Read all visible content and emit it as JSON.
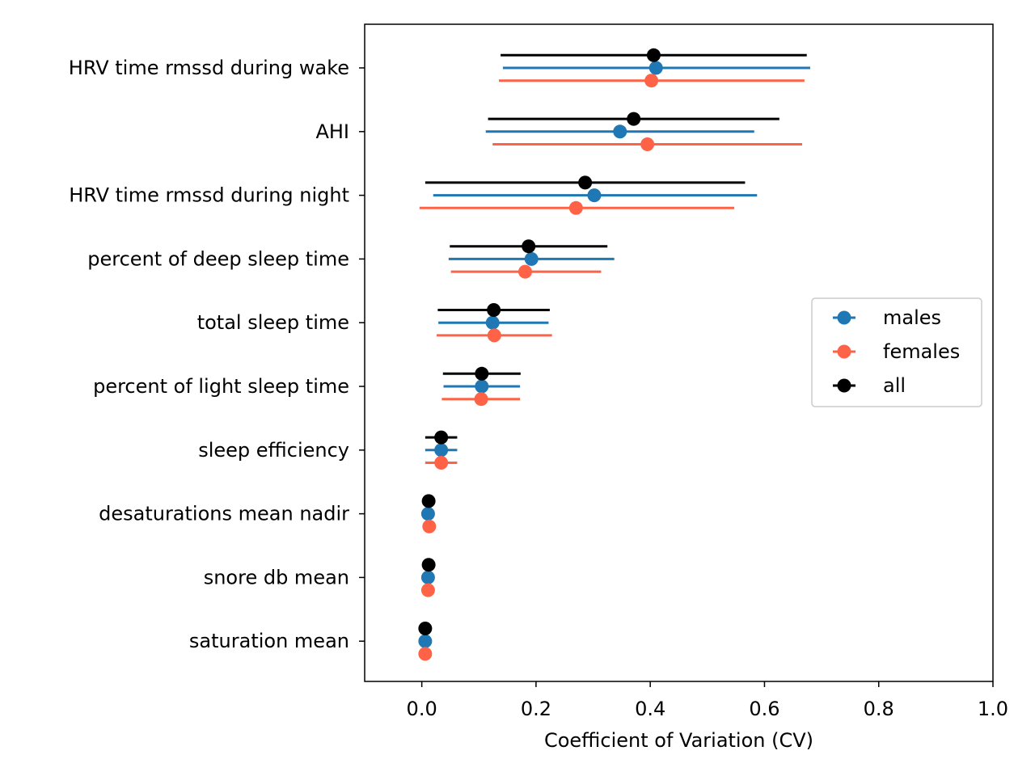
{
  "chart_data": {
    "type": "scatter",
    "subtype": "errorbar-dot-plot",
    "title": "",
    "xlabel": "Coefficient of Variation (CV)",
    "ylabel": "",
    "xlim": [
      -0.1,
      1.0
    ],
    "xticks": [
      0.0,
      0.2,
      0.4,
      0.6,
      0.8,
      1.0
    ],
    "xtick_labels": [
      "0.0",
      "0.2",
      "0.4",
      "0.6",
      "0.8",
      "1.0"
    ],
    "grid": false,
    "legend_position": "center-right",
    "categories": [
      "HRV time rmssd during wake",
      "AHI",
      "HRV time rmssd during night",
      "percent of deep sleep time",
      "total sleep time",
      "percent of light sleep time",
      "sleep efficiency",
      "desaturations mean nadir",
      "snore db mean",
      "saturation mean"
    ],
    "series": [
      {
        "name": "males",
        "color": "#1f77b4",
        "values": [
          0.41,
          0.347,
          0.302,
          0.192,
          0.124,
          0.105,
          0.034,
          0.011,
          0.011,
          0.006
        ],
        "err_low": [
          0.142,
          0.112,
          0.02,
          0.047,
          0.029,
          0.038,
          0.006,
          null,
          null,
          null
        ],
        "err_high": [
          0.68,
          0.582,
          0.587,
          0.337,
          0.222,
          0.172,
          0.062,
          null,
          null,
          null
        ]
      },
      {
        "name": "females",
        "color": "#ff6347",
        "values": [
          0.402,
          0.395,
          0.27,
          0.181,
          0.127,
          0.104,
          0.034,
          0.013,
          0.011,
          0.006
        ],
        "err_low": [
          0.135,
          0.124,
          -0.004,
          0.051,
          0.026,
          0.035,
          0.006,
          null,
          null,
          null
        ],
        "err_high": [
          0.67,
          0.666,
          0.547,
          0.314,
          0.228,
          0.172,
          0.062,
          null,
          null,
          null
        ]
      },
      {
        "name": "all",
        "color": "#000000",
        "values": [
          0.406,
          0.371,
          0.286,
          0.187,
          0.126,
          0.105,
          0.034,
          0.012,
          0.012,
          0.006
        ],
        "err_low": [
          0.138,
          0.116,
          0.006,
          0.049,
          0.028,
          0.037,
          0.006,
          null,
          null,
          null
        ],
        "err_high": [
          0.674,
          0.626,
          0.566,
          0.325,
          0.224,
          0.173,
          0.062,
          null,
          null,
          null
        ]
      }
    ]
  }
}
